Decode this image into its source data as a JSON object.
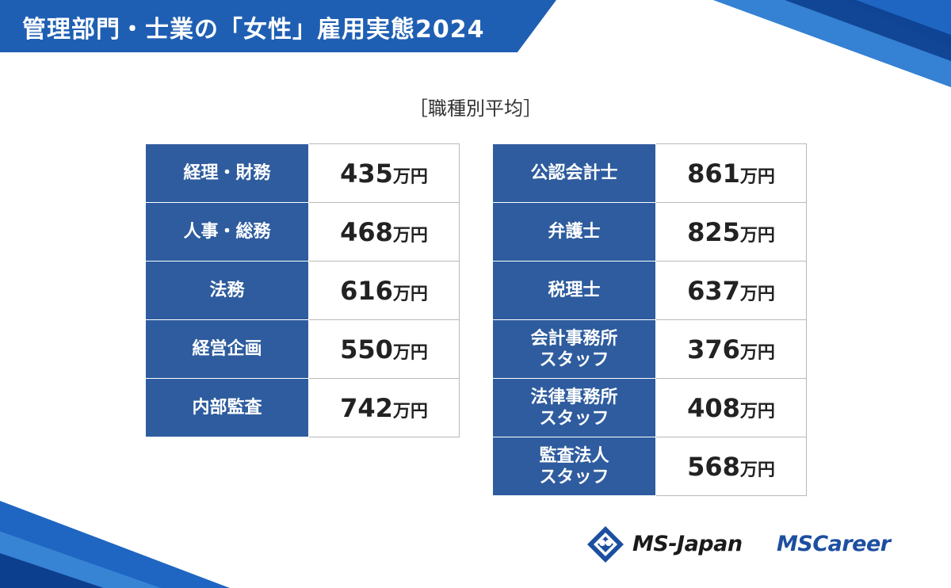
{
  "header": {
    "title": "管理部門・士業の「女性」雇用実態2024"
  },
  "subtitle": "［職種別平均］",
  "colors": {
    "banner": "#1f5fb3",
    "cell_header": "#2e5c9e",
    "logo_blue": "#1d4fa0"
  },
  "unit": "万円",
  "table_left": [
    {
      "job": "経理・財務",
      "value": "435"
    },
    {
      "job": "人事・総務",
      "value": "468"
    },
    {
      "job": "法務",
      "value": "616"
    },
    {
      "job": "経営企画",
      "value": "550"
    },
    {
      "job": "内部監査",
      "value": "742"
    }
  ],
  "table_right": [
    {
      "job": "公認会計士",
      "value": "861"
    },
    {
      "job": "弁護士",
      "value": "825"
    },
    {
      "job": "税理士",
      "value": "637"
    },
    {
      "job": "会計事務所\nスタッフ",
      "value": "376"
    },
    {
      "job": "法律事務所\nスタッフ",
      "value": "408"
    },
    {
      "job": "監査法人\nスタッフ",
      "value": "568"
    }
  ],
  "logos": {
    "ms_japan": "MS-Japan",
    "ms_career": "MSCareer",
    "ms_japan_icon": "ms-japan-diamond-icon"
  }
}
